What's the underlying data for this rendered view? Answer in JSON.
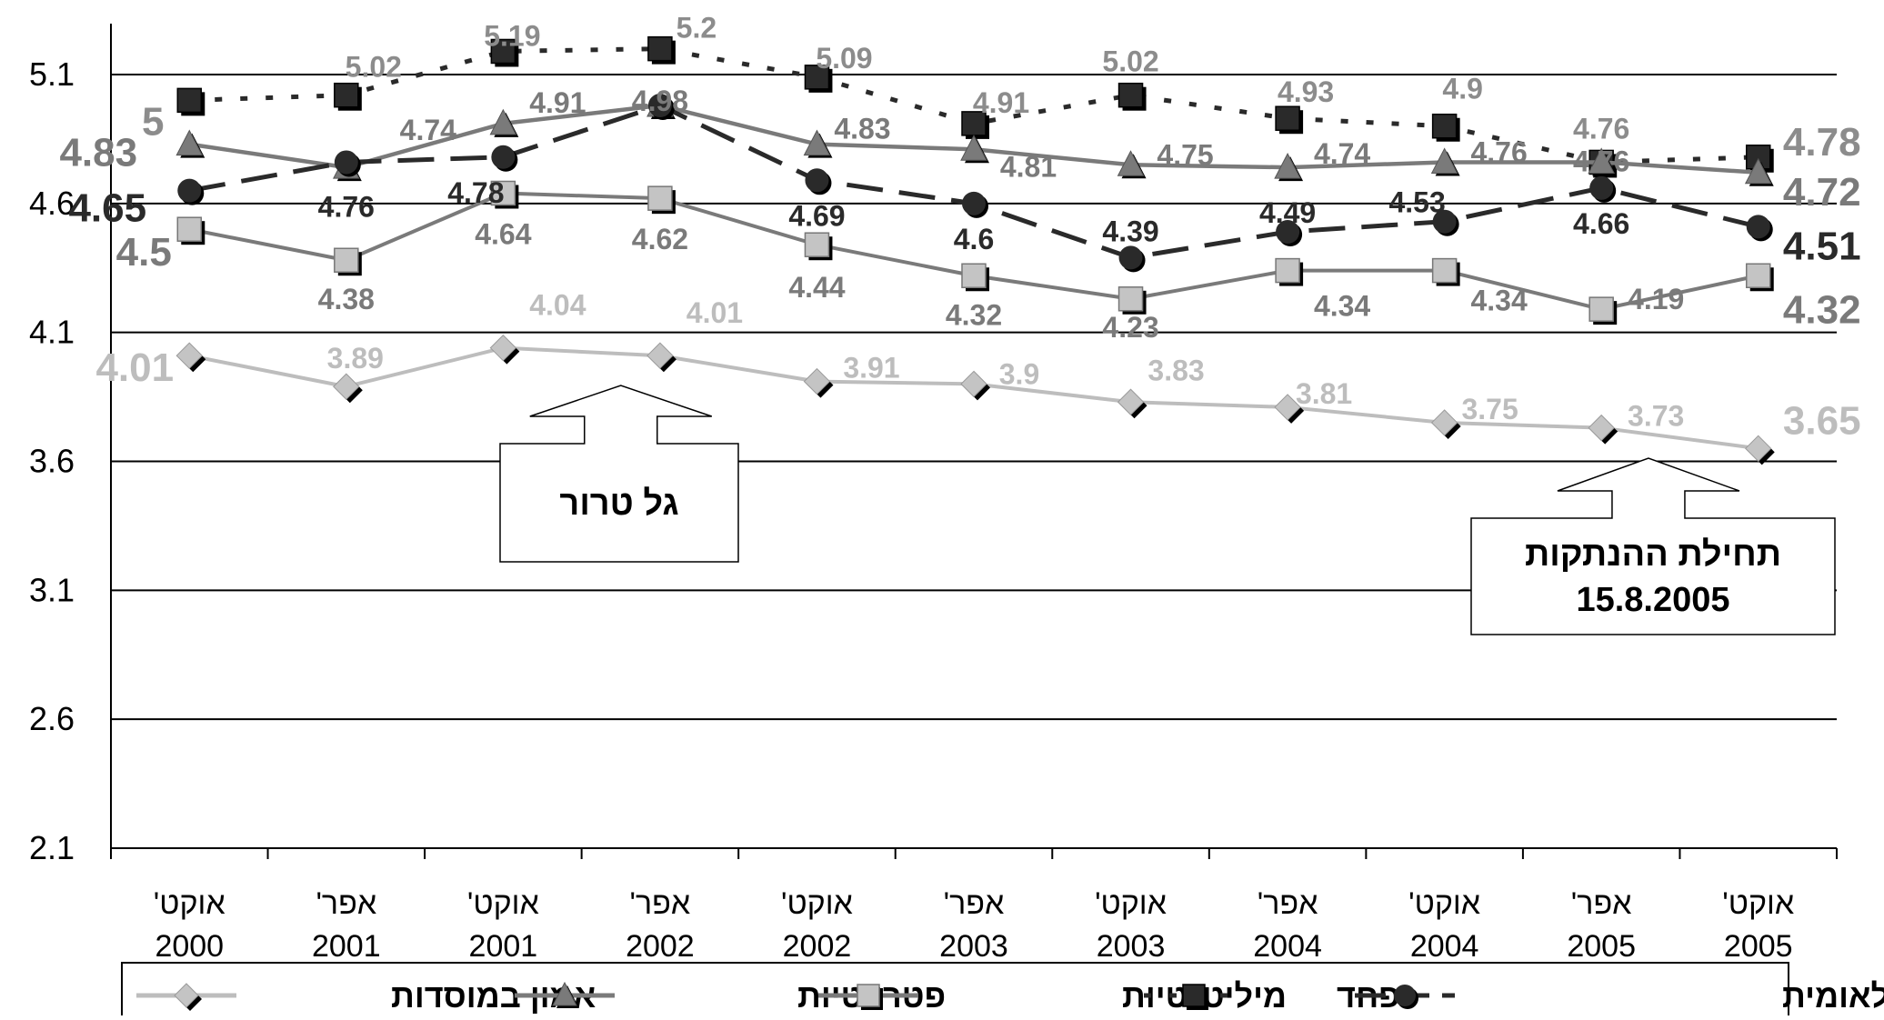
{
  "chart_data": {
    "type": "line",
    "categories": [
      [
        "אוקט'",
        "2000"
      ],
      [
        "אפר'",
        "2001"
      ],
      [
        "אוקט'",
        "2001"
      ],
      [
        "אפר'",
        "2002"
      ],
      [
        "אוקט'",
        "2002"
      ],
      [
        "אפר'",
        "2003"
      ],
      [
        "אוקט'",
        "2003"
      ],
      [
        "אפר'",
        "2004"
      ],
      [
        "אוקט'",
        "2004"
      ],
      [
        "אפר'",
        "2005"
      ],
      [
        "אוקט'",
        "2005"
      ]
    ],
    "ylim": [
      2.1,
      5.1
    ],
    "yticks": [
      "2.1",
      "2.6",
      "3.1",
      "3.6",
      "4.1",
      "4.6",
      "5.1"
    ],
    "grid": true,
    "legend_position": "bottom",
    "series": [
      {
        "key": "fear",
        "name": "פחד",
        "values": [
          5,
          5.02,
          5.19,
          5.2,
          5.09,
          4.91,
          5.02,
          4.93,
          4.9,
          4.76,
          4.78
        ],
        "labels": [
          "5",
          "5.02",
          "5.19",
          "5.2",
          "5.09",
          "4.91",
          "5.02",
          "4.93",
          "4.9",
          "4.76",
          "4.78"
        ],
        "color": "#2a2a2a",
        "label_color": "#8c8c8c",
        "marker": "square",
        "dash": "dotted"
      },
      {
        "key": "patriotism",
        "name": "פטריוטיות",
        "values": [
          4.83,
          4.74,
          4.91,
          4.98,
          4.83,
          4.81,
          4.75,
          4.74,
          4.76,
          4.76,
          4.72
        ],
        "labels": [
          "4.83",
          "4.74",
          "4.91",
          "4.98",
          "4.83",
          "4.81",
          "4.75",
          "4.74",
          "4.76",
          "4.76",
          "4.72"
        ],
        "color": "#7a7a7a",
        "label_color": "#7a7a7a",
        "marker": "triangle",
        "dash": "solid"
      },
      {
        "key": "optimism",
        "name": "אופטימיות לאומית",
        "values": [
          4.65,
          4.76,
          4.78,
          4.98,
          4.69,
          4.6,
          4.39,
          4.49,
          4.53,
          4.66,
          4.51
        ],
        "labels": [
          "4.65",
          "4.76",
          "4.78",
          "",
          "4.69",
          "4.6",
          "4.39",
          "4.49",
          "4.53",
          "4.66",
          "4.51"
        ],
        "color": "#2a2a2a",
        "label_color": "#2a2a2a",
        "marker": "circle",
        "dash": "dashed"
      },
      {
        "key": "militancy",
        "name": "מיליטנטיות",
        "values": [
          4.5,
          4.38,
          4.64,
          4.62,
          4.44,
          4.32,
          4.23,
          4.34,
          4.34,
          4.19,
          4.32
        ],
        "labels": [
          "4.5",
          "4.38",
          "4.64",
          "4.62",
          "4.44",
          "4.32",
          "4.23",
          "4.34",
          "4.34",
          "4.19",
          "4.32"
        ],
        "color": "#7a7a7a",
        "label_color": "#7a7a7a",
        "marker": "square-light",
        "dash": "solid"
      },
      {
        "key": "trust",
        "name": "אמון במוסדות",
        "values": [
          4.01,
          3.89,
          4.04,
          4.01,
          3.91,
          3.9,
          3.83,
          3.81,
          3.75,
          3.73,
          3.65
        ],
        "labels": [
          "4.01",
          "3.89",
          "4.04",
          "4.01",
          "3.91",
          "3.9",
          "3.83",
          "3.81",
          "3.75",
          "3.73",
          "3.65"
        ],
        "color": "#bdbdbd",
        "label_color": "#bdbdbd",
        "marker": "diamond",
        "dash": "solid"
      }
    ],
    "annotations": [
      {
        "key": "terror",
        "lines": [
          "גל טרור"
        ],
        "points_to_index": 2.75
      },
      {
        "key": "disengagement",
        "lines": [
          "תחילת ההנתקות",
          "15.8.2005"
        ],
        "points_to_index": 9.3
      }
    ],
    "legend_order": [
      "trust",
      "patriotism",
      "militancy",
      "fear",
      "optimism"
    ]
  }
}
